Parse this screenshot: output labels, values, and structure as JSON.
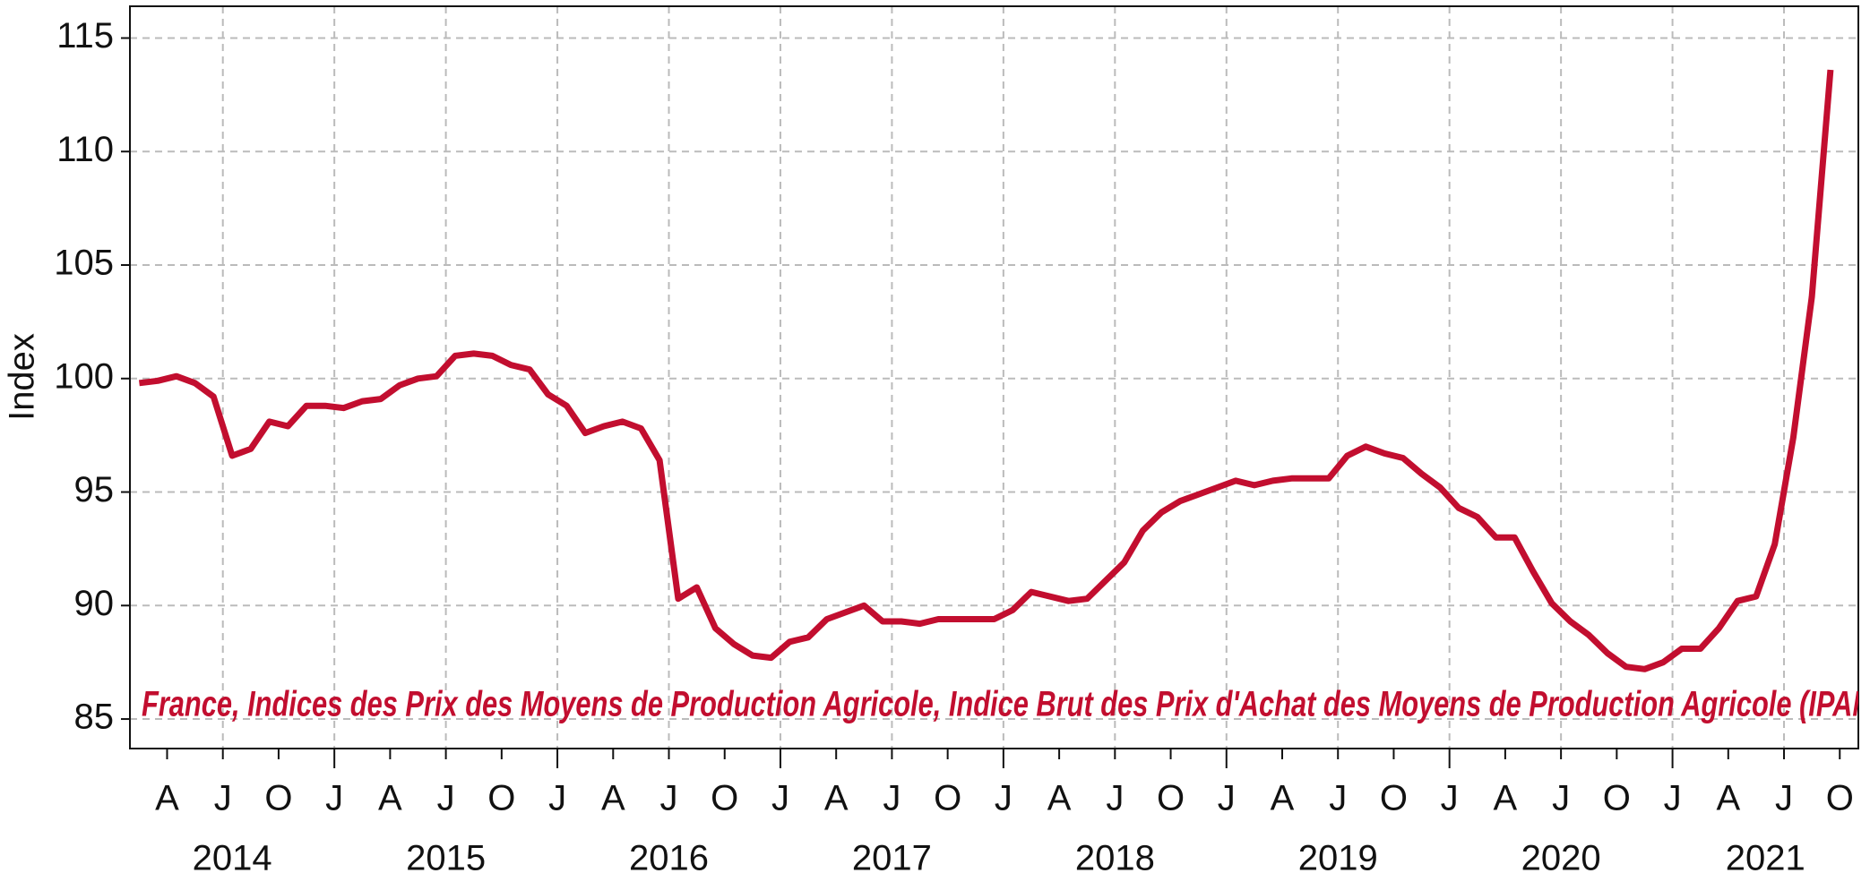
{
  "chart_data": {
    "type": "line",
    "ylabel": "Index",
    "annotation": "France, Indices des Prix des Moyens de Production Agricole, Indice Brut des Prix d'Achat des Moyens de Production Agricole (IPAM",
    "x": [
      "2014-02",
      "2014-03",
      "2014-04",
      "2014-05",
      "2014-06",
      "2014-07",
      "2014-08",
      "2014-09",
      "2014-10",
      "2014-11",
      "2014-12",
      "2015-01",
      "2015-02",
      "2015-03",
      "2015-04",
      "2015-05",
      "2015-06",
      "2015-07",
      "2015-08",
      "2015-09",
      "2015-10",
      "2015-11",
      "2015-12",
      "2016-01",
      "2016-02",
      "2016-03",
      "2016-04",
      "2016-05",
      "2016-06",
      "2016-07",
      "2016-08",
      "2016-09",
      "2016-10",
      "2016-11",
      "2016-12",
      "2017-01",
      "2017-02",
      "2017-03",
      "2017-04",
      "2017-05",
      "2017-06",
      "2017-07",
      "2017-08",
      "2017-09",
      "2017-10",
      "2017-11",
      "2017-12",
      "2018-01",
      "2018-02",
      "2018-03",
      "2018-04",
      "2018-05",
      "2018-06",
      "2018-07",
      "2018-08",
      "2018-09",
      "2018-10",
      "2018-11",
      "2018-12",
      "2019-01",
      "2019-02",
      "2019-03",
      "2019-04",
      "2019-05",
      "2019-06",
      "2019-07",
      "2019-08",
      "2019-09",
      "2019-10",
      "2019-11",
      "2019-12",
      "2020-01",
      "2020-02",
      "2020-03",
      "2020-04",
      "2020-05",
      "2020-06",
      "2020-07",
      "2020-08",
      "2020-09",
      "2020-10",
      "2020-11",
      "2020-12",
      "2021-01",
      "2021-02",
      "2021-03",
      "2021-04",
      "2021-05",
      "2021-06",
      "2021-07",
      "2021-08",
      "2021-09"
    ],
    "series": [
      {
        "color": "#c20e2f",
        "values": [
          99.8,
          99.9,
          100.1,
          99.8,
          99.2,
          96.6,
          96.9,
          98.1,
          97.9,
          98.8,
          98.8,
          98.7,
          99.0,
          99.1,
          99.7,
          100.0,
          100.1,
          101.0,
          101.1,
          101.0,
          100.6,
          100.4,
          99.3,
          98.8,
          97.6,
          97.9,
          98.1,
          97.8,
          96.4,
          90.3,
          90.8,
          89.0,
          88.3,
          87.8,
          87.7,
          88.4,
          88.6,
          89.4,
          89.7,
          90.0,
          89.3,
          89.3,
          89.2,
          89.4,
          89.4,
          89.4,
          89.4,
          89.8,
          90.6,
          90.4,
          90.2,
          90.3,
          91.1,
          91.9,
          93.3,
          94.1,
          94.6,
          94.9,
          95.2,
          95.5,
          95.3,
          95.5,
          95.6,
          95.6,
          95.6,
          96.6,
          97.0,
          96.7,
          96.5,
          95.8,
          95.2,
          94.3,
          93.9,
          93.0,
          93.0,
          91.5,
          90.1,
          89.3,
          88.7,
          87.9,
          87.3,
          87.2,
          87.5,
          88.1,
          88.1,
          89.0,
          90.2,
          90.4,
          92.7,
          97.4,
          103.6,
          113.6
        ]
      }
    ],
    "xlim": [
      "2014-02",
      "2021-11"
    ],
    "xticks": [
      {
        "value": "2014-04",
        "label": "A"
      },
      {
        "value": "2014-07",
        "label": "J"
      },
      {
        "value": "2014-10",
        "label": "O"
      },
      {
        "value": "2015-01",
        "label": "J"
      },
      {
        "value": "2015-04",
        "label": "A"
      },
      {
        "value": "2015-07",
        "label": "J"
      },
      {
        "value": "2015-10",
        "label": "O"
      },
      {
        "value": "2016-01",
        "label": "J"
      },
      {
        "value": "2016-04",
        "label": "A"
      },
      {
        "value": "2016-07",
        "label": "J"
      },
      {
        "value": "2016-10",
        "label": "O"
      },
      {
        "value": "2017-01",
        "label": "J"
      },
      {
        "value": "2017-04",
        "label": "A"
      },
      {
        "value": "2017-07",
        "label": "J"
      },
      {
        "value": "2017-10",
        "label": "O"
      },
      {
        "value": "2018-01",
        "label": "J"
      },
      {
        "value": "2018-04",
        "label": "A"
      },
      {
        "value": "2018-07",
        "label": "J"
      },
      {
        "value": "2018-10",
        "label": "O"
      },
      {
        "value": "2019-01",
        "label": "J"
      },
      {
        "value": "2019-04",
        "label": "A"
      },
      {
        "value": "2019-07",
        "label": "J"
      },
      {
        "value": "2019-10",
        "label": "O"
      },
      {
        "value": "2020-01",
        "label": "J"
      },
      {
        "value": "2020-04",
        "label": "A"
      },
      {
        "value": "2020-07",
        "label": "J"
      },
      {
        "value": "2020-10",
        "label": "O"
      },
      {
        "value": "2021-01",
        "label": "J"
      },
      {
        "value": "2021-04",
        "label": "A"
      },
      {
        "value": "2021-07",
        "label": "J"
      },
      {
        "value": "2021-10",
        "label": "O"
      }
    ],
    "years": [
      "2014",
      "2015",
      "2016",
      "2017",
      "2018",
      "2019",
      "2020",
      "2021"
    ],
    "ylim": [
      83.7,
      116.4
    ],
    "yticks": [
      85,
      90,
      95,
      100,
      105,
      110,
      115
    ],
    "grid": true
  }
}
